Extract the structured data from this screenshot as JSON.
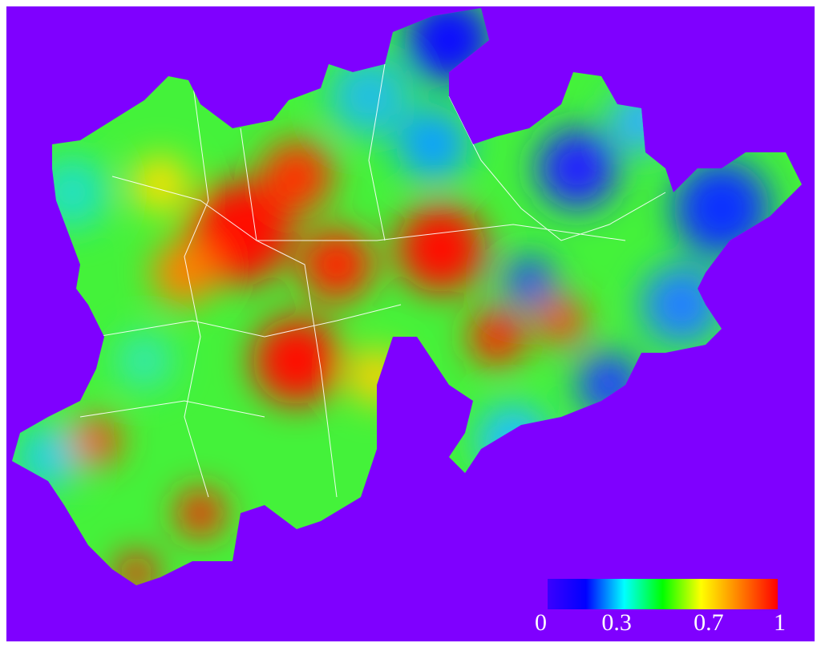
{
  "colorbar": {
    "ticks": [
      0,
      0.3,
      0.7,
      1
    ],
    "range": [
      0,
      1
    ],
    "colors": [
      "#3a00ff",
      "#0000ff",
      "#00ffff",
      "#00ff00",
      "#ffff00",
      "#ff8000",
      "#ff0000"
    ]
  }
}
